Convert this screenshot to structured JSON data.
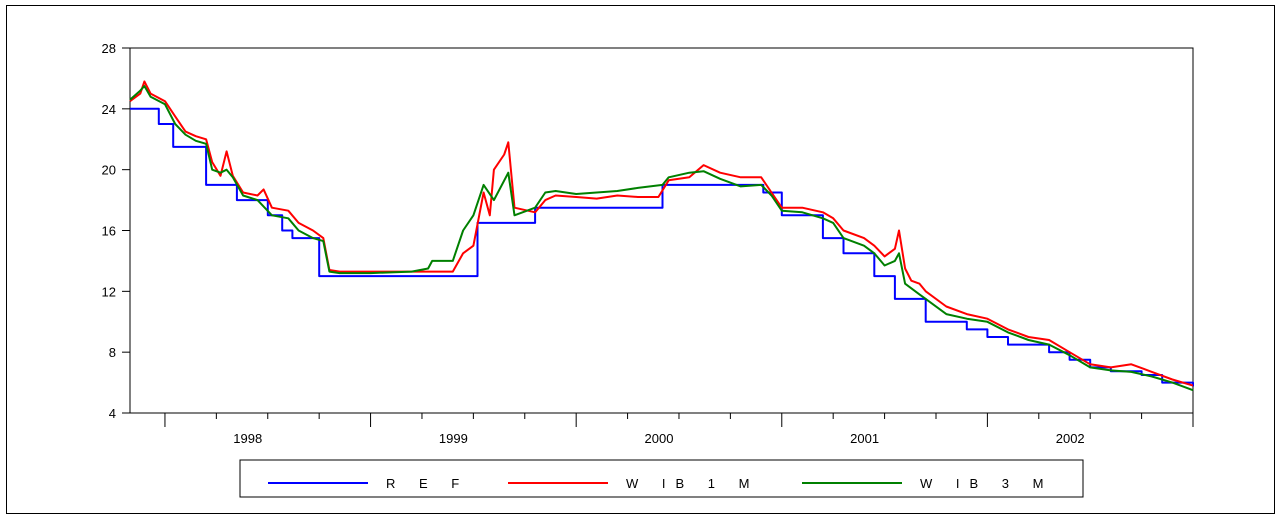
{
  "chart_data": {
    "type": "line",
    "title": "",
    "xlabel": "",
    "ylabel": "",
    "ylim": [
      4,
      28
    ],
    "y_ticks": [
      4,
      8,
      12,
      16,
      20,
      24,
      28
    ],
    "xlim": [
      1997.83,
      2003.0
    ],
    "x_tick_labels": [
      "1998",
      "1999",
      "2000",
      "2001",
      "2002"
    ],
    "grid": false,
    "legend_position": "bottom-center",
    "series": [
      {
        "name": "R E F",
        "color": "#0000ff",
        "step": true,
        "points": [
          [
            1997.83,
            24
          ],
          [
            1997.97,
            24
          ],
          [
            1997.97,
            23
          ],
          [
            1998.04,
            23
          ],
          [
            1998.04,
            21.5
          ],
          [
            1998.2,
            21.5
          ],
          [
            1998.2,
            19
          ],
          [
            1998.35,
            19
          ],
          [
            1998.35,
            18
          ],
          [
            1998.5,
            18
          ],
          [
            1998.5,
            17
          ],
          [
            1998.57,
            17
          ],
          [
            1998.57,
            16
          ],
          [
            1998.62,
            16
          ],
          [
            1998.62,
            15.5
          ],
          [
            1998.75,
            15.5
          ],
          [
            1998.75,
            13
          ],
          [
            1999.52,
            13
          ],
          [
            1999.52,
            16.5
          ],
          [
            1999.8,
            16.5
          ],
          [
            1999.8,
            17.5
          ],
          [
            2000.42,
            17.5
          ],
          [
            2000.42,
            19
          ],
          [
            2000.91,
            19
          ],
          [
            2000.91,
            18.5
          ],
          [
            2001.0,
            18.5
          ],
          [
            2001.0,
            17
          ],
          [
            2001.2,
            17
          ],
          [
            2001.2,
            15.5
          ],
          [
            2001.3,
            15.5
          ],
          [
            2001.3,
            14.5
          ],
          [
            2001.45,
            14.5
          ],
          [
            2001.45,
            13
          ],
          [
            2001.55,
            13
          ],
          [
            2001.55,
            11.5
          ],
          [
            2001.7,
            11.5
          ],
          [
            2001.7,
            10
          ],
          [
            2001.9,
            10
          ],
          [
            2001.9,
            9.5
          ],
          [
            2002.0,
            9.5
          ],
          [
            2002.0,
            9
          ],
          [
            2002.1,
            9
          ],
          [
            2002.1,
            8.5
          ],
          [
            2002.3,
            8.5
          ],
          [
            2002.3,
            8
          ],
          [
            2002.4,
            8
          ],
          [
            2002.4,
            7.5
          ],
          [
            2002.5,
            7.5
          ],
          [
            2002.5,
            7
          ],
          [
            2002.6,
            7
          ],
          [
            2002.6,
            6.75
          ],
          [
            2002.75,
            6.75
          ],
          [
            2002.75,
            6.5
          ],
          [
            2002.85,
            6.5
          ],
          [
            2002.85,
            6
          ],
          [
            2003.0,
            6
          ],
          [
            2003.0,
            5.75
          ]
        ]
      },
      {
        "name": "W  IB  1  M",
        "color": "#ff0000",
        "step": false,
        "points": [
          [
            1997.83,
            24.5
          ],
          [
            1997.88,
            25.0
          ],
          [
            1997.9,
            25.8
          ],
          [
            1997.93,
            25.0
          ],
          [
            1998.0,
            24.5
          ],
          [
            1998.05,
            23.5
          ],
          [
            1998.1,
            22.5
          ],
          [
            1998.15,
            22.2
          ],
          [
            1998.2,
            22.0
          ],
          [
            1998.23,
            20.5
          ],
          [
            1998.27,
            19.6
          ],
          [
            1998.3,
            21.2
          ],
          [
            1998.33,
            19.6
          ],
          [
            1998.38,
            18.5
          ],
          [
            1998.45,
            18.3
          ],
          [
            1998.48,
            18.7
          ],
          [
            1998.52,
            17.5
          ],
          [
            1998.6,
            17.3
          ],
          [
            1998.65,
            16.5
          ],
          [
            1998.72,
            16.0
          ],
          [
            1998.77,
            15.5
          ],
          [
            1998.8,
            13.4
          ],
          [
            1998.85,
            13.3
          ],
          [
            1999.0,
            13.3
          ],
          [
            1999.2,
            13.3
          ],
          [
            1999.4,
            13.3
          ],
          [
            1999.45,
            14.5
          ],
          [
            1999.5,
            15.0
          ],
          [
            1999.55,
            18.5
          ],
          [
            1999.58,
            17.0
          ],
          [
            1999.6,
            20.0
          ],
          [
            1999.65,
            21.0
          ],
          [
            1999.67,
            21.8
          ],
          [
            1999.7,
            17.5
          ],
          [
            1999.8,
            17.2
          ],
          [
            1999.85,
            18.0
          ],
          [
            1999.9,
            18.3
          ],
          [
            2000.0,
            18.2
          ],
          [
            2000.1,
            18.1
          ],
          [
            2000.2,
            18.3
          ],
          [
            2000.3,
            18.2
          ],
          [
            2000.4,
            18.2
          ],
          [
            2000.45,
            19.3
          ],
          [
            2000.55,
            19.5
          ],
          [
            2000.62,
            20.3
          ],
          [
            2000.7,
            19.8
          ],
          [
            2000.8,
            19.5
          ],
          [
            2000.9,
            19.5
          ],
          [
            2000.95,
            18.5
          ],
          [
            2001.0,
            17.5
          ],
          [
            2001.1,
            17.5
          ],
          [
            2001.2,
            17.2
          ],
          [
            2001.25,
            16.8
          ],
          [
            2001.3,
            16.0
          ],
          [
            2001.4,
            15.5
          ],
          [
            2001.45,
            15.0
          ],
          [
            2001.5,
            14.3
          ],
          [
            2001.55,
            14.8
          ],
          [
            2001.57,
            16.0
          ],
          [
            2001.6,
            13.5
          ],
          [
            2001.63,
            12.7
          ],
          [
            2001.67,
            12.5
          ],
          [
            2001.7,
            12.0
          ],
          [
            2001.8,
            11.0
          ],
          [
            2001.9,
            10.5
          ],
          [
            2002.0,
            10.2
          ],
          [
            2002.1,
            9.5
          ],
          [
            2002.2,
            9.0
          ],
          [
            2002.3,
            8.8
          ],
          [
            2002.4,
            8.0
          ],
          [
            2002.5,
            7.2
          ],
          [
            2002.6,
            7.0
          ],
          [
            2002.7,
            7.2
          ],
          [
            2002.8,
            6.7
          ],
          [
            2002.9,
            6.2
          ],
          [
            2003.0,
            5.8
          ]
        ]
      },
      {
        "name": "W  IB  3  M",
        "color": "#008000",
        "step": false,
        "points": [
          [
            1997.83,
            24.6
          ],
          [
            1997.88,
            25.2
          ],
          [
            1997.9,
            25.5
          ],
          [
            1997.93,
            24.8
          ],
          [
            1998.0,
            24.3
          ],
          [
            1998.05,
            23.0
          ],
          [
            1998.1,
            22.3
          ],
          [
            1998.15,
            21.9
          ],
          [
            1998.2,
            21.7
          ],
          [
            1998.23,
            20.0
          ],
          [
            1998.27,
            19.8
          ],
          [
            1998.3,
            20.0
          ],
          [
            1998.33,
            19.5
          ],
          [
            1998.38,
            18.3
          ],
          [
            1998.45,
            18.0
          ],
          [
            1998.52,
            17.0
          ],
          [
            1998.6,
            16.8
          ],
          [
            1998.65,
            16.0
          ],
          [
            1998.72,
            15.5
          ],
          [
            1998.77,
            15.3
          ],
          [
            1998.8,
            13.3
          ],
          [
            1998.85,
            13.2
          ],
          [
            1999.0,
            13.2
          ],
          [
            1999.2,
            13.3
          ],
          [
            1999.28,
            13.5
          ],
          [
            1999.3,
            14.0
          ],
          [
            1999.4,
            14.0
          ],
          [
            1999.45,
            16.0
          ],
          [
            1999.5,
            17.0
          ],
          [
            1999.55,
            19.0
          ],
          [
            1999.6,
            18.0
          ],
          [
            1999.67,
            19.8
          ],
          [
            1999.7,
            17.0
          ],
          [
            1999.8,
            17.5
          ],
          [
            1999.85,
            18.5
          ],
          [
            1999.9,
            18.6
          ],
          [
            2000.0,
            18.4
          ],
          [
            2000.1,
            18.5
          ],
          [
            2000.2,
            18.6
          ],
          [
            2000.3,
            18.8
          ],
          [
            2000.42,
            19.0
          ],
          [
            2000.45,
            19.5
          ],
          [
            2000.55,
            19.8
          ],
          [
            2000.62,
            19.9
          ],
          [
            2000.7,
            19.4
          ],
          [
            2000.8,
            18.9
          ],
          [
            2000.9,
            19.0
          ],
          [
            2000.95,
            18.3
          ],
          [
            2001.0,
            17.3
          ],
          [
            2001.1,
            17.2
          ],
          [
            2001.2,
            16.8
          ],
          [
            2001.25,
            16.5
          ],
          [
            2001.3,
            15.5
          ],
          [
            2001.4,
            15.0
          ],
          [
            2001.45,
            14.5
          ],
          [
            2001.5,
            13.7
          ],
          [
            2001.55,
            14.0
          ],
          [
            2001.57,
            14.5
          ],
          [
            2001.6,
            12.5
          ],
          [
            2001.63,
            12.2
          ],
          [
            2001.67,
            11.8
          ],
          [
            2001.7,
            11.5
          ],
          [
            2001.8,
            10.5
          ],
          [
            2001.9,
            10.2
          ],
          [
            2002.0,
            10.0
          ],
          [
            2002.1,
            9.3
          ],
          [
            2002.2,
            8.8
          ],
          [
            2002.3,
            8.5
          ],
          [
            2002.4,
            7.8
          ],
          [
            2002.5,
            7.0
          ],
          [
            2002.6,
            6.8
          ],
          [
            2002.7,
            6.7
          ],
          [
            2002.8,
            6.4
          ],
          [
            2002.9,
            6.0
          ],
          [
            2003.0,
            5.5
          ]
        ]
      }
    ]
  }
}
